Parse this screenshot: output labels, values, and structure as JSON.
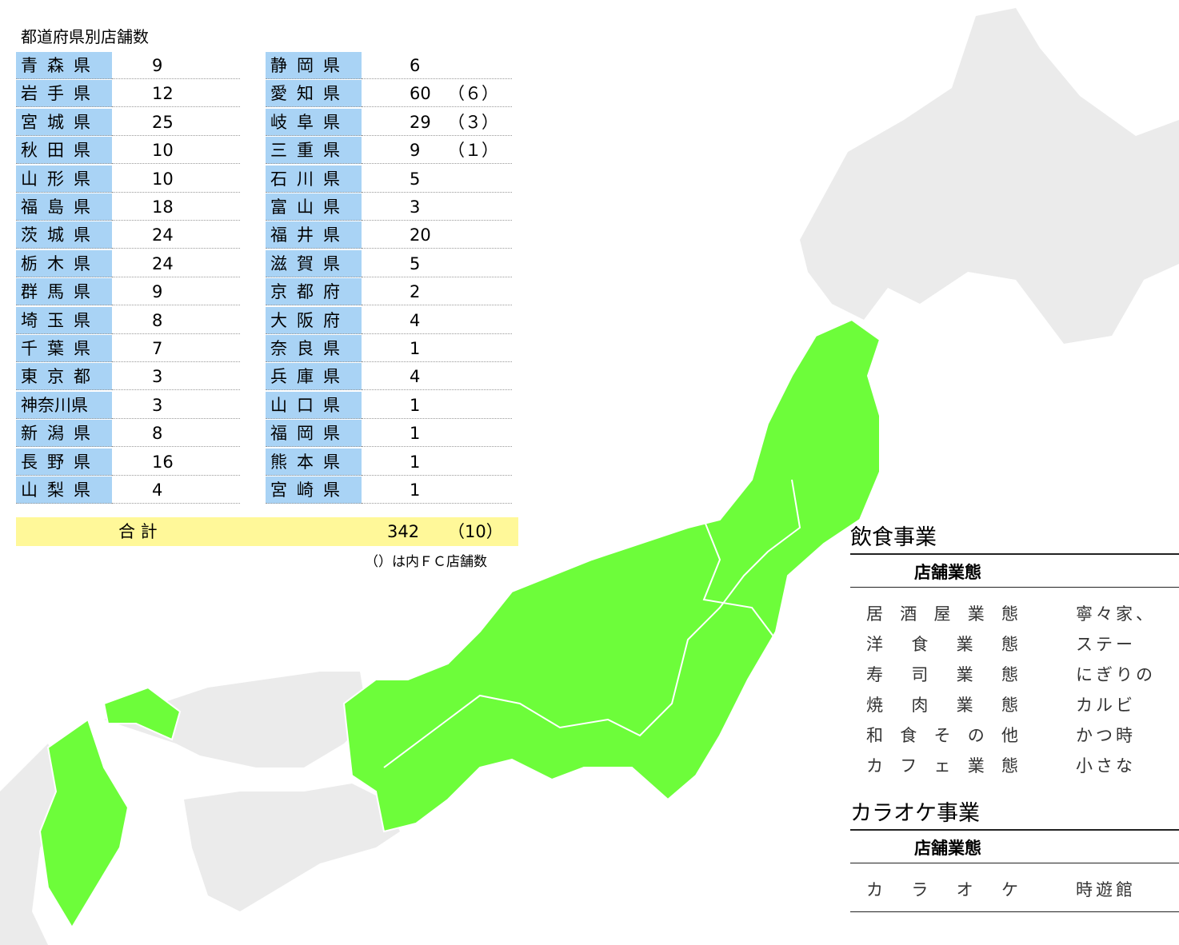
{
  "store_table": {
    "title": "都道府県別店舗数",
    "left_rows": [
      [
        "青森県",
        9
      ],
      [
        "岩手県",
        12
      ],
      [
        "宮城県",
        25
      ],
      [
        "秋田県",
        10
      ],
      [
        "山形県",
        10
      ],
      [
        "福島県",
        18
      ],
      [
        "茨城県",
        24
      ],
      [
        "栃木県",
        24
      ],
      [
        "群馬県",
        9
      ],
      [
        "埼玉県",
        8
      ],
      [
        "千葉県",
        7
      ],
      [
        "東京都",
        3
      ],
      [
        "神奈川県",
        3
      ],
      [
        "新潟県",
        8
      ],
      [
        "長野県",
        16
      ],
      [
        "山梨県",
        4
      ]
    ],
    "right_rows": [
      [
        "静岡県",
        6
      ],
      [
        "愛知県",
        60,
        "（６）"
      ],
      [
        "岐阜県",
        29,
        "（３）"
      ],
      [
        "三重県",
        9,
        "（１）"
      ],
      [
        "石川県",
        5
      ],
      [
        "富山県",
        3
      ],
      [
        "福井県",
        20
      ],
      [
        "滋賀県",
        5
      ],
      [
        "京都府",
        2
      ],
      [
        "大阪府",
        4
      ],
      [
        "奈良県",
        1
      ],
      [
        "兵庫県",
        4
      ],
      [
        "山口県",
        1
      ],
      [
        "福岡県",
        1
      ],
      [
        "熊本県",
        1
      ],
      [
        "宮崎県",
        1
      ]
    ],
    "total_label": "合 計",
    "total_value": 342,
    "total_fc": "（10）",
    "note": "（）は内ＦＣ店舗数"
  },
  "restaurant": {
    "title": "飲食事業",
    "header": "店舗業態",
    "rows": [
      [
        "居酒屋業態",
        "寧々家、"
      ],
      [
        "洋食業態",
        "ステー"
      ],
      [
        "寿司業態",
        "にぎりの"
      ],
      [
        "焼肉業態",
        "カルビ"
      ],
      [
        "和食その他",
        "かつ時"
      ],
      [
        "カフェ業態",
        "小さな"
      ]
    ]
  },
  "karaoke": {
    "title": "カラオケ事業",
    "header": "店舗業態",
    "rows": [
      [
        "カラオケ",
        "時遊館"
      ]
    ]
  }
}
